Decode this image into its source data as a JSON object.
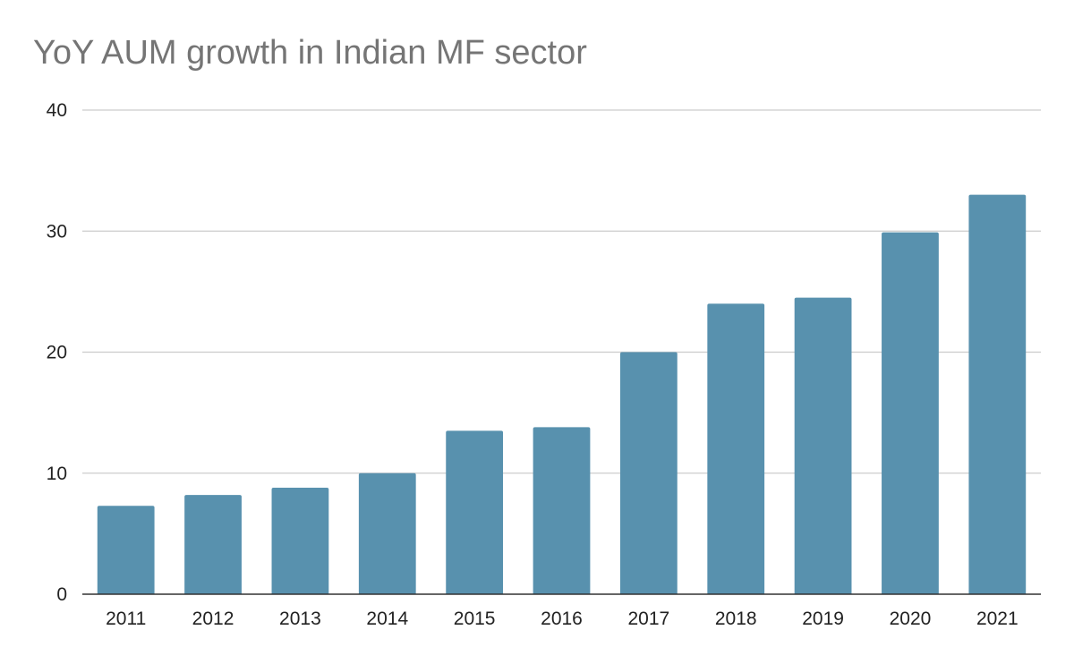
{
  "chart_data": {
    "type": "bar",
    "title": "YoY AUM growth in Indian MF sector",
    "categories": [
      "2011",
      "2012",
      "2013",
      "2014",
      "2015",
      "2016",
      "2017",
      "2018",
      "2019",
      "2020",
      "2021"
    ],
    "values": [
      7.3,
      8.2,
      8.8,
      10.0,
      13.5,
      13.8,
      20.0,
      24.0,
      24.5,
      29.9,
      33.0
    ],
    "ylim": [
      0,
      40
    ],
    "yticks": [
      "0",
      "10",
      "20",
      "30",
      "40"
    ],
    "xlabel": "",
    "ylabel": "",
    "grid": true,
    "legend": "none",
    "bar_color": "#5891ae",
    "title_color": "#757575",
    "grid_color": "#cccccc",
    "axis_color": "#333333"
  }
}
